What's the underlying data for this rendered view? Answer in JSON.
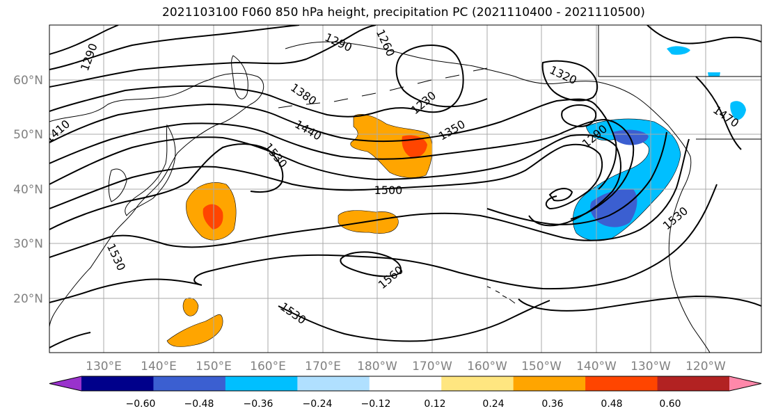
{
  "title": "2021103100 F060 850 hPa height, precipitation PC (2021110400 - 2021110500)",
  "map": {
    "latitude_labels": [
      "60°N",
      "50°N",
      "40°N",
      "30°N",
      "20°N"
    ],
    "longitude_labels": [
      "130°E",
      "140°E",
      "150°E",
      "160°E",
      "170°E",
      "180°W",
      "170°W",
      "160°W",
      "150°W",
      "140°W",
      "130°W",
      "120°W"
    ],
    "contour_labels": [
      "1290",
      "1290",
      "1260",
      "1230",
      "1380",
      "1440",
      "1410",
      "1530",
      "1350",
      "1320",
      "1290",
      "1470",
      "1500",
      "1530",
      "1530",
      "1560",
      "1530"
    ],
    "colors": {
      "contour": "#000000",
      "orange": "#ffa500",
      "red_orange": "#ff4500",
      "light_yellow": "#ffe680",
      "deep_sky_blue": "#00bfff",
      "royal_blue": "#3b5fd1"
    }
  },
  "colorbar": {
    "tick_labels": [
      "−0.60",
      "−0.48",
      "−0.36",
      "−0.24",
      "−0.12",
      "0.12",
      "0.24",
      "0.36",
      "0.48",
      "0.60"
    ],
    "colors": [
      "#9932cc",
      "#00008b",
      "#3b5fd1",
      "#00bfff",
      "#b0e0ff",
      "#ffffff",
      "#ffe680",
      "#ffa500",
      "#ff4500",
      "#b22222",
      "#ff88aa"
    ]
  }
}
